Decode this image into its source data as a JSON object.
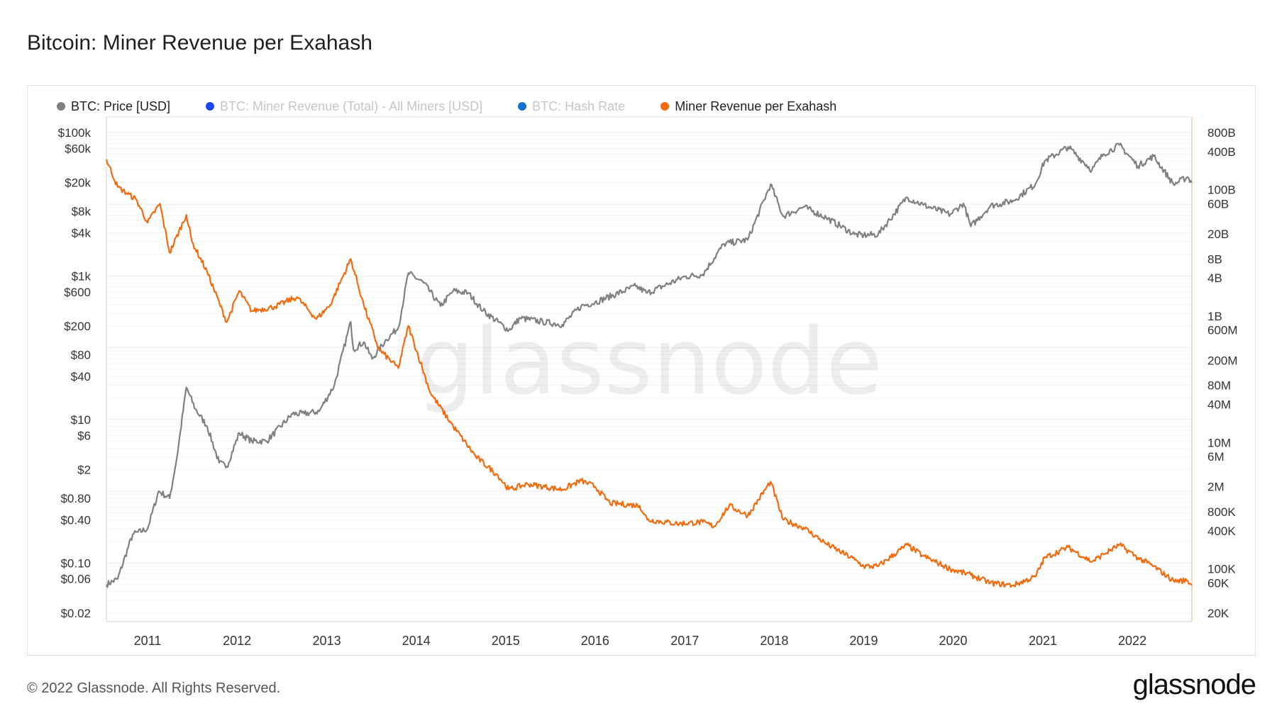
{
  "title": "Bitcoin: Miner Revenue per Exahash",
  "legend": [
    {
      "label": "BTC: Price [USD]",
      "color": "#808080",
      "active": true
    },
    {
      "label": "BTC: Miner Revenue (Total) - All Miners [USD]",
      "color": "#1a47f0",
      "active": false
    },
    {
      "label": "BTC: Hash Rate",
      "color": "#1670d0",
      "active": false
    },
    {
      "label": "Miner Revenue per Exahash",
      "color": "#f26b0f",
      "active": true
    }
  ],
  "watermark": "glassnode",
  "footer": {
    "copyright": "© 2022 Glassnode. All Rights Reserved.",
    "logo": "glassnode"
  },
  "chart_data": {
    "type": "line",
    "title": "Bitcoin: Miner Revenue per Exahash",
    "x_range": [
      "2010-07-17",
      "2022-09-01"
    ],
    "x_ticks": [
      {
        "label": "2011",
        "date": "2011-01-01"
      },
      {
        "label": "2012",
        "date": "2012-01-01"
      },
      {
        "label": "2013",
        "date": "2013-01-01"
      },
      {
        "label": "2014",
        "date": "2014-01-01"
      },
      {
        "label": "2015",
        "date": "2015-01-01"
      },
      {
        "label": "2016",
        "date": "2016-01-01"
      },
      {
        "label": "2017",
        "date": "2017-01-01"
      },
      {
        "label": "2018",
        "date": "2018-01-01"
      },
      {
        "label": "2019",
        "date": "2019-01-01"
      },
      {
        "label": "2020",
        "date": "2020-01-01"
      },
      {
        "label": "2021",
        "date": "2021-01-01"
      },
      {
        "label": "2022",
        "date": "2022-01-01"
      }
    ],
    "y_left": {
      "scale": "log",
      "range": [
        0.02,
        100000
      ],
      "ticks": [
        {
          "label": "$100k",
          "value": 100000
        },
        {
          "label": "$60k",
          "value": 60000
        },
        {
          "label": "$20k",
          "value": 20000
        },
        {
          "label": "$8k",
          "value": 8000
        },
        {
          "label": "$4k",
          "value": 4000
        },
        {
          "label": "$1k",
          "value": 1000
        },
        {
          "label": "$600",
          "value": 600
        },
        {
          "label": "$200",
          "value": 200
        },
        {
          "label": "$80",
          "value": 80
        },
        {
          "label": "$40",
          "value": 40
        },
        {
          "label": "$10",
          "value": 10
        },
        {
          "label": "$6",
          "value": 6
        },
        {
          "label": "$2",
          "value": 2
        },
        {
          "label": "$0.80",
          "value": 0.8
        },
        {
          "label": "$0.40",
          "value": 0.4
        },
        {
          "label": "$0.10",
          "value": 0.1
        },
        {
          "label": "$0.06",
          "value": 0.06
        },
        {
          "label": "$0.02",
          "value": 0.02
        }
      ]
    },
    "y_right": {
      "scale": "log",
      "range": [
        20000,
        800000000000
      ],
      "ticks": [
        {
          "label": "800B",
          "value": 800000000000
        },
        {
          "label": "400B",
          "value": 400000000000
        },
        {
          "label": "100B",
          "value": 100000000000
        },
        {
          "label": "60B",
          "value": 60000000000
        },
        {
          "label": "20B",
          "value": 20000000000
        },
        {
          "label": "8B",
          "value": 8000000000
        },
        {
          "label": "4B",
          "value": 4000000000
        },
        {
          "label": "1B",
          "value": 1000000000
        },
        {
          "label": "600M",
          "value": 600000000
        },
        {
          "label": "200M",
          "value": 200000000
        },
        {
          "label": "80M",
          "value": 80000000
        },
        {
          "label": "40M",
          "value": 40000000
        },
        {
          "label": "10M",
          "value": 10000000
        },
        {
          "label": "6M",
          "value": 6000000
        },
        {
          "label": "2M",
          "value": 2000000
        },
        {
          "label": "800K",
          "value": 800000
        },
        {
          "label": "400K",
          "value": 400000
        },
        {
          "label": "100K",
          "value": 100000
        },
        {
          "label": "60K",
          "value": 60000
        },
        {
          "label": "20K",
          "value": 20000
        }
      ]
    },
    "series": [
      {
        "name": "BTC: Price [USD]",
        "axis": "left",
        "color": "#808080",
        "points": [
          [
            "2010-07-17",
            0.05
          ],
          [
            "2010-09-01",
            0.06
          ],
          [
            "2010-11-01",
            0.25
          ],
          [
            "2011-01-01",
            0.3
          ],
          [
            "2011-02-15",
            1.0
          ],
          [
            "2011-04-01",
            0.8
          ],
          [
            "2011-05-01",
            3.0
          ],
          [
            "2011-06-08",
            28
          ],
          [
            "2011-07-15",
            14
          ],
          [
            "2011-09-01",
            8
          ],
          [
            "2011-10-20",
            2.5
          ],
          [
            "2011-11-20",
            2.2
          ],
          [
            "2012-01-10",
            6.5
          ],
          [
            "2012-03-01",
            5
          ],
          [
            "2012-05-01",
            5
          ],
          [
            "2012-08-15",
            12
          ],
          [
            "2012-10-01",
            12
          ],
          [
            "2012-12-01",
            13
          ],
          [
            "2013-02-01",
            30
          ],
          [
            "2013-04-09",
            230
          ],
          [
            "2013-04-20",
            95
          ],
          [
            "2013-06-01",
            120
          ],
          [
            "2013-07-05",
            70
          ],
          [
            "2013-09-01",
            130
          ],
          [
            "2013-10-20",
            190
          ],
          [
            "2013-11-30",
            1100
          ],
          [
            "2014-02-01",
            800
          ],
          [
            "2014-04-10",
            380
          ],
          [
            "2014-06-01",
            620
          ],
          [
            "2014-08-01",
            580
          ],
          [
            "2014-10-01",
            330
          ],
          [
            "2015-01-14",
            175
          ],
          [
            "2015-03-01",
            260
          ],
          [
            "2015-06-01",
            230
          ],
          [
            "2015-08-20",
            210
          ],
          [
            "2015-11-05",
            380
          ],
          [
            "2016-01-01",
            430
          ],
          [
            "2016-06-15",
            720
          ],
          [
            "2016-08-01",
            580
          ],
          [
            "2017-01-01",
            980
          ],
          [
            "2017-03-15",
            1050
          ],
          [
            "2017-06-10",
            2800
          ],
          [
            "2017-09-15",
            3200
          ],
          [
            "2017-12-17",
            19000
          ],
          [
            "2018-02-06",
            6800
          ],
          [
            "2018-05-01",
            9200
          ],
          [
            "2018-08-01",
            6500
          ],
          [
            "2018-11-25",
            3800
          ],
          [
            "2019-01-01",
            3700
          ],
          [
            "2019-03-01",
            3800
          ],
          [
            "2019-06-26",
            12500
          ],
          [
            "2019-09-01",
            9800
          ],
          [
            "2019-12-20",
            7200
          ],
          [
            "2020-02-12",
            10300
          ],
          [
            "2020-03-13",
            4900
          ],
          [
            "2020-06-01",
            9500
          ],
          [
            "2020-09-01",
            11200
          ],
          [
            "2020-12-01",
            19000
          ],
          [
            "2021-01-08",
            40000
          ],
          [
            "2021-04-14",
            63000
          ],
          [
            "2021-07-20",
            30000
          ],
          [
            "2021-09-05",
            50000
          ],
          [
            "2021-11-10",
            67000
          ],
          [
            "2022-01-24",
            34000
          ],
          [
            "2022-03-29",
            47000
          ],
          [
            "2022-06-18",
            19000
          ],
          [
            "2022-08-15",
            24000
          ],
          [
            "2022-09-01",
            20000
          ]
        ]
      },
      {
        "name": "Miner Revenue per Exahash",
        "axis": "right",
        "color": "#f26b0f",
        "points": [
          [
            "2010-07-17",
            300000000000
          ],
          [
            "2010-09-01",
            110000000000
          ],
          [
            "2010-11-15",
            70000000000
          ],
          [
            "2011-01-01",
            30000000000
          ],
          [
            "2011-02-20",
            60000000000
          ],
          [
            "2011-04-01",
            10000000000
          ],
          [
            "2011-06-08",
            40000000000
          ],
          [
            "2011-07-01",
            15000000000
          ],
          [
            "2011-09-01",
            5000000000
          ],
          [
            "2011-11-20",
            800000000
          ],
          [
            "2012-01-10",
            2500000000
          ],
          [
            "2012-03-01",
            1200000000
          ],
          [
            "2012-06-01",
            1400000000
          ],
          [
            "2012-09-01",
            2000000000
          ],
          [
            "2012-11-20",
            900000000
          ],
          [
            "2013-01-15",
            1500000000
          ],
          [
            "2013-04-09",
            8000000000
          ],
          [
            "2013-06-01",
            1500000000
          ],
          [
            "2013-08-01",
            300000000
          ],
          [
            "2013-10-20",
            150000000
          ],
          [
            "2013-11-30",
            700000000
          ],
          [
            "2014-03-01",
            60000000
          ],
          [
            "2014-06-01",
            18000000
          ],
          [
            "2014-09-01",
            6000000
          ],
          [
            "2014-12-01",
            3000000
          ],
          [
            "2015-01-14",
            1800000
          ],
          [
            "2015-04-01",
            2200000
          ],
          [
            "2015-08-20",
            1800000
          ],
          [
            "2015-11-05",
            2500000
          ],
          [
            "2016-01-01",
            2000000
          ],
          [
            "2016-03-01",
            1100000
          ],
          [
            "2016-07-01",
            1000000
          ],
          [
            "2016-08-01",
            600000
          ],
          [
            "2016-12-01",
            520000
          ],
          [
            "2017-03-15",
            550000
          ],
          [
            "2017-05-01",
            470000
          ],
          [
            "2017-07-01",
            1000000
          ],
          [
            "2017-09-15",
            700000
          ],
          [
            "2017-12-17",
            2400000
          ],
          [
            "2018-02-06",
            600000
          ],
          [
            "2018-05-01",
            450000
          ],
          [
            "2018-08-01",
            250000
          ],
          [
            "2018-11-25",
            140000
          ],
          [
            "2019-01-01",
            110000
          ],
          [
            "2019-03-01",
            110000
          ],
          [
            "2019-06-26",
            240000
          ],
          [
            "2019-09-01",
            160000
          ],
          [
            "2019-12-20",
            100000
          ],
          [
            "2020-03-13",
            80000
          ],
          [
            "2020-06-01",
            60000
          ],
          [
            "2020-09-01",
            55000
          ],
          [
            "2020-12-01",
            75000
          ],
          [
            "2021-01-08",
            150000
          ],
          [
            "2021-04-14",
            220000
          ],
          [
            "2021-07-20",
            130000
          ],
          [
            "2021-09-05",
            170000
          ],
          [
            "2021-11-10",
            240000
          ],
          [
            "2022-01-24",
            150000
          ],
          [
            "2022-03-29",
            110000
          ],
          [
            "2022-06-18",
            65000
          ],
          [
            "2022-08-15",
            65000
          ],
          [
            "2022-09-01",
            55000
          ]
        ]
      }
    ],
    "grid": true,
    "legend_position": "top-left"
  }
}
